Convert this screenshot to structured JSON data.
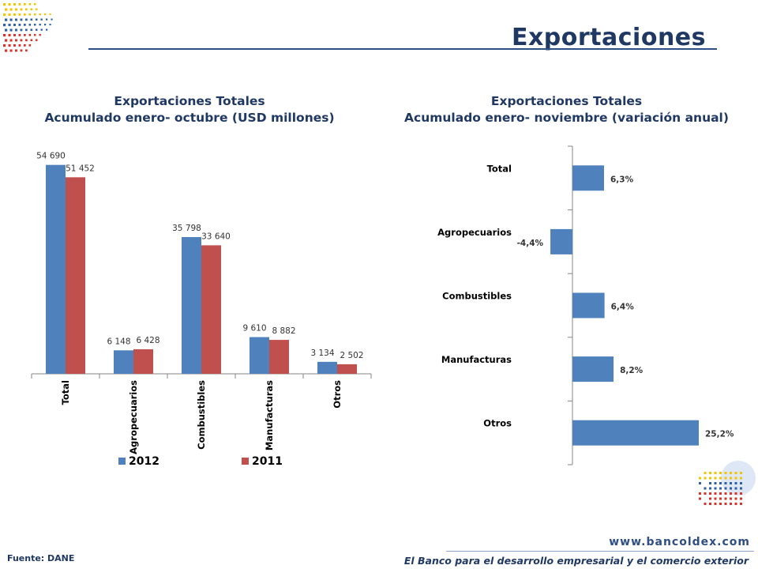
{
  "header": {
    "title": "Exportaciones"
  },
  "left_chart_title": {
    "line1": "Exportaciones Totales",
    "line2": "Acumulado enero- octubre (USD millones)"
  },
  "right_chart_title": {
    "line1": "Exportaciones Totales",
    "line2": "Acumulado enero- noviembre (variación anual)"
  },
  "footer": {
    "source": "Fuente: DANE",
    "website": "www.bancoldex.com",
    "slogan": "El Banco para el desarrollo empresarial y el comercio exterior"
  },
  "colors": {
    "series_2012": "#4f81bd",
    "series_2011": "#c0504d",
    "title": "#1f3864"
  },
  "chart_data": [
    {
      "type": "bar",
      "categories": [
        "Total",
        "Agropecuarios",
        "Combustibles",
        "Manufacturas",
        "Otros"
      ],
      "series": [
        {
          "name": "2012",
          "values": [
            54690,
            6148,
            35798,
            9610,
            3134
          ],
          "labels": [
            "54 690",
            "6 148",
            "35 798",
            "9 610",
            "3 134"
          ]
        },
        {
          "name": "2011",
          "values": [
            51452,
            6428,
            33640,
            8882,
            2502
          ],
          "labels": [
            "51 452",
            "6 428",
            "33 640",
            "8 882",
            "2 502"
          ]
        }
      ],
      "title": "Exportaciones Totales Acumulado enero- octubre (USD millones)",
      "xlabel": "",
      "ylabel": "",
      "ylim": [
        0,
        60000
      ],
      "legend": "bottom",
      "grid": false
    },
    {
      "type": "bar",
      "orientation": "horizontal",
      "categories": [
        "Total",
        "Agropecuarios",
        "Combustibles",
        "Manufacturas",
        "Otros"
      ],
      "values": [
        6.3,
        -4.4,
        6.4,
        8.2,
        25.2
      ],
      "labels": [
        "6,3%",
        "-4,4%",
        "6,4%",
        "8,2%",
        "25,2%"
      ],
      "title": "Exportaciones Totales Acumulado enero- noviembre (variación anual)",
      "xlabel": "",
      "ylabel": "",
      "xlim": [
        -6,
        30
      ],
      "grid": false
    }
  ]
}
